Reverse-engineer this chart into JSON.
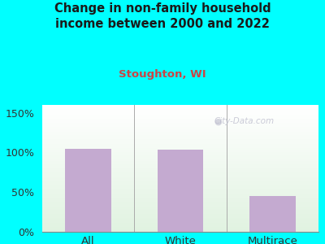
{
  "title": "Change in non-family household\nincome between 2000 and 2022",
  "subtitle": "Stoughton, WI",
  "categories": [
    "All",
    "White",
    "Multirace"
  ],
  "values": [
    105,
    104,
    45
  ],
  "bar_color": "#c4aad0",
  "title_color": "#1a1a1a",
  "subtitle_color": "#cc4444",
  "background_outer": "#00ffff",
  "ylim": [
    0,
    160
  ],
  "yticks": [
    0,
    50,
    100,
    150
  ],
  "ytick_labels": [
    "0%",
    "50%",
    "100%",
    "150%"
  ],
  "watermark": "City-Data.com",
  "title_fontsize": 10.5,
  "subtitle_fontsize": 9.5,
  "tick_fontsize": 9,
  "label_fontsize": 9.5
}
